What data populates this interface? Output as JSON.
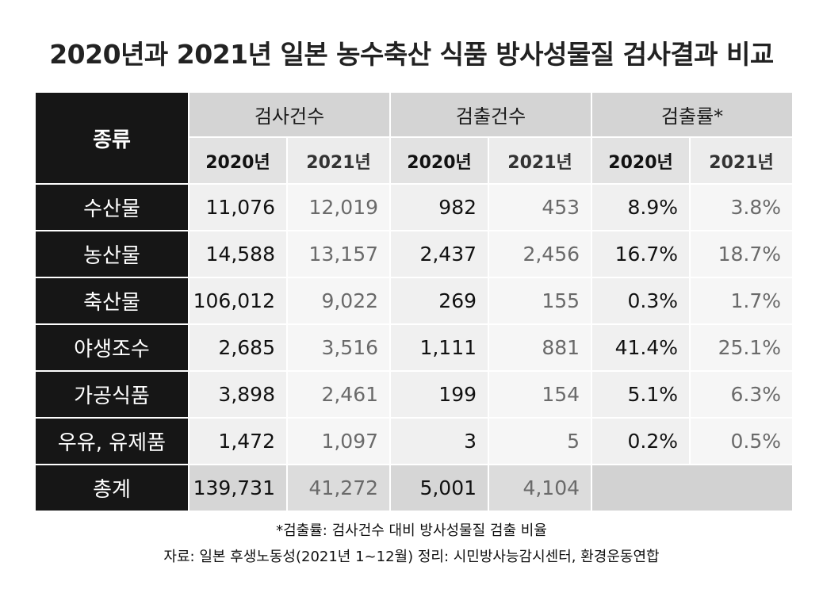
{
  "title": "2020년과 2021년 일본 농수축산 식품 방사성물질 검사결과 비교",
  "chart_data": {
    "type": "table",
    "title": "2020년과 2021년 일본 농수축산 식품 방사성물질 검사결과 비교",
    "category_header": "종류",
    "group_headers": [
      "검사건수",
      "검출건수",
      "검출률*"
    ],
    "year_headers": [
      "2020년",
      "2021년",
      "2020년",
      "2021년",
      "2020년",
      "2021년"
    ],
    "rows": [
      {
        "label": "수산물",
        "values": [
          "11,076",
          "12,019",
          "982",
          "453",
          "8.9%",
          "3.8%"
        ]
      },
      {
        "label": "농산물",
        "values": [
          "14,588",
          "13,157",
          "2,437",
          "2,456",
          "16.7%",
          "18.7%"
        ]
      },
      {
        "label": "축산물",
        "values": [
          "106,012",
          "9,022",
          "269",
          "155",
          "0.3%",
          "1.7%"
        ]
      },
      {
        "label": "야생조수",
        "values": [
          "2,685",
          "3,516",
          "1,111",
          "881",
          "41.4%",
          "25.1%"
        ]
      },
      {
        "label": "가공식품",
        "values": [
          "3,898",
          "2,461",
          "199",
          "154",
          "5.1%",
          "6.3%"
        ]
      },
      {
        "label": "우유, 유제품",
        "values": [
          "1,472",
          "1,097",
          "3",
          "5",
          "0.2%",
          "0.5%"
        ]
      }
    ],
    "total": {
      "label": "총계",
      "values": [
        "139,731",
        "41,272",
        "5,001",
        "4,104"
      ]
    }
  },
  "footnote": "*검출률: 검사건수 대비 방사성물질 검출 비율",
  "source": "자료: 일본 후생노동성(2021년 1~12월) 정리: 시민방사능감시센터, 환경운동연합",
  "colors": {
    "header_dark": "#161616",
    "header_gray": "#d4d4d4",
    "cell_light": "#f0f0f0",
    "muted_text": "#6a6a6a"
  }
}
